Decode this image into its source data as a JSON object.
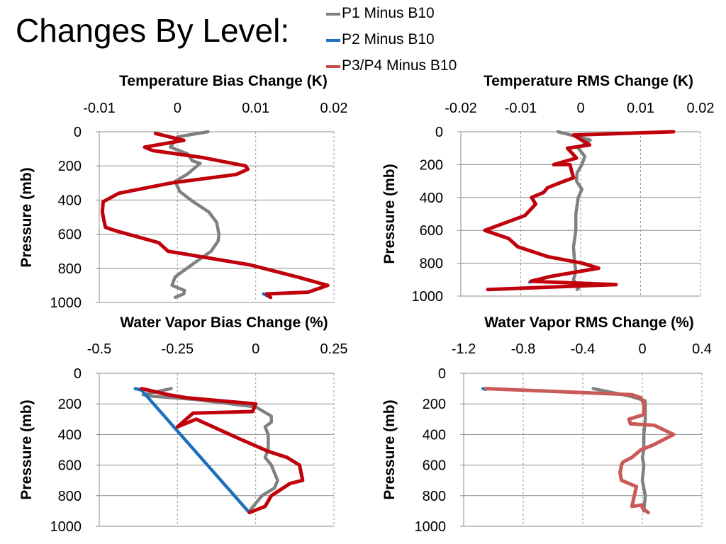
{
  "title": "Changes By Level:",
  "legend": [
    {
      "label": "P1 Minus B10",
      "color": "#808080"
    },
    {
      "label": "P2 Minus B10",
      "color": "#1f6fbf"
    },
    {
      "label": "P3/P4 Minus B10",
      "color": "#c0504d"
    }
  ],
  "chart_data": [
    {
      "type": "line",
      "title": "Temperature Bias Change (K)",
      "xlabel": "",
      "ylabel": "Pressure (mb)",
      "xlim": [
        -0.01,
        0.02
      ],
      "ylim": [
        0,
        1000
      ],
      "y_inverted": true,
      "x_axis_position": "top",
      "x_ticks": [
        "-0.01",
        "0",
        "0.01",
        "0.02"
      ],
      "y_ticks": [
        "0",
        "200",
        "400",
        "600",
        "800",
        "1000"
      ],
      "grid": true,
      "series": [
        {
          "name": "P1 Minus B10",
          "color": "#808080",
          "width": 4.5,
          "x": [
            0.0039,
            0.0,
            -0.0009,
            0.0013,
            0.0019,
            0.0029,
            0.0012,
            -0.0003,
            0.0003,
            0.002,
            0.004,
            0.005,
            0.0053,
            0.0052,
            0.0043,
            0.0021,
            -0.0003,
            -0.0007,
            0.0009,
            0.0008,
            -0.0003
          ],
          "y": [
            0,
            30,
            90,
            130,
            170,
            185,
            250,
            290,
            350,
            410,
            470,
            530,
            600,
            640,
            700,
            770,
            850,
            900,
            930,
            950,
            970
          ]
        },
        {
          "name": "P2 Minus B10",
          "color": "#1f6fbf",
          "width": 4.5,
          "x": [
            0.011,
            0.0119
          ],
          "y": [
            950,
            970
          ]
        },
        {
          "name": "P3/P4 Minus B10",
          "color": "#c0000b",
          "width": 5,
          "x": [
            -0.0028,
            0.0008,
            -0.0042,
            -0.0032,
            0.0031,
            0.0087,
            0.009,
            0.0075,
            -0.0008,
            -0.0075,
            -0.0095,
            -0.0096,
            -0.0094,
            -0.0092,
            -0.0079,
            -0.0024,
            -0.0012,
            0.0093,
            0.0153,
            0.0192,
            0.0167,
            0.0114,
            0.0119
          ],
          "y": [
            10,
            50,
            90,
            110,
            150,
            200,
            220,
            250,
            300,
            360,
            410,
            470,
            520,
            560,
            580,
            650,
            700,
            780,
            850,
            900,
            940,
            950,
            970
          ]
        }
      ]
    },
    {
      "type": "line",
      "title": "Temperature RMS Change (K)",
      "xlabel": "",
      "ylabel": "Pressure (mb)",
      "xlim": [
        -0.02,
        0.02
      ],
      "ylim": [
        0,
        1000
      ],
      "y_inverted": true,
      "x_axis_position": "top",
      "x_ticks": [
        "-0.02",
        "-0.01",
        "0",
        "0.01",
        "0.02"
      ],
      "y_ticks": [
        "0",
        "200",
        "400",
        "600",
        "800",
        "1000"
      ],
      "grid": true,
      "series": [
        {
          "name": "P1 Minus B10",
          "color": "#808080",
          "width": 4.5,
          "x": [
            -0.0038,
            0.0016,
            -0.0004,
            0.0007,
            0.0002,
            -0.0006,
            -0.0007,
            0.0002,
            -0.0004,
            -0.0008,
            -0.0008,
            -0.0012,
            -0.001,
            -0.0008,
            -0.0012,
            -0.0003,
            -0.0006
          ],
          "y": [
            0,
            50,
            100,
            150,
            200,
            250,
            300,
            350,
            400,
            500,
            600,
            700,
            800,
            850,
            900,
            950,
            960
          ]
        },
        {
          "name": "P2 Minus B10",
          "color": "#1f6fbf",
          "width": 4.5,
          "x": [
            -0.0085,
            -0.0075
          ],
          "y": [
            915,
            900
          ]
        },
        {
          "name": "P3/P4 Minus B10",
          "color": "#c0000b",
          "width": 5,
          "x": [
            0.0155,
            -0.0012,
            0.0015,
            -0.0022,
            -0.0007,
            -0.0045,
            -0.0018,
            -0.0012,
            -0.0027,
            -0.0055,
            -0.0062,
            -0.0082,
            -0.0075,
            -0.0093,
            -0.016,
            -0.012,
            -0.0105,
            -0.0055,
            0.0003,
            0.003,
            -0.005,
            -0.0083,
            0.0059,
            -0.0155
          ],
          "y": [
            0,
            20,
            80,
            100,
            160,
            200,
            200,
            280,
            300,
            340,
            370,
            400,
            440,
            510,
            600,
            650,
            700,
            760,
            800,
            830,
            880,
            910,
            930,
            960
          ]
        }
      ]
    },
    {
      "type": "line",
      "title": "Water Vapor Bias Change (%)",
      "xlabel": "",
      "ylabel": "Pressure (mb)",
      "xlim": [
        -0.5,
        0.25
      ],
      "ylim": [
        0,
        1000
      ],
      "y_inverted": true,
      "x_axis_position": "top",
      "x_ticks": [
        "-0.5",
        "-0.25",
        "0",
        "0.25"
      ],
      "y_ticks": [
        "0",
        "200",
        "400",
        "600",
        "800",
        "1000"
      ],
      "grid": true,
      "series": [
        {
          "name": "P1 Minus B10",
          "color": "#808080",
          "width": 4.5,
          "x": [
            -0.27,
            -0.36,
            -0.33,
            -0.2,
            0.0,
            0.05,
            0.05,
            0.03,
            0.04,
            0.04,
            0.03,
            0.05,
            0.06,
            0.07,
            0.06,
            0.02,
            -0.02
          ],
          "y": [
            100,
            140,
            150,
            170,
            220,
            280,
            320,
            350,
            400,
            500,
            550,
            600,
            650,
            700,
            750,
            800,
            900
          ]
        },
        {
          "name": "P2 Minus B10",
          "color": "#1f6fbf",
          "width": 4.5,
          "x": [
            -0.385,
            -0.365,
            -0.025,
            -0.02
          ],
          "y": [
            100,
            110,
            900,
            910
          ]
        },
        {
          "name": "P3/P4 Minus B10",
          "color": "#c0000b",
          "width": 5,
          "x": [
            -0.365,
            -0.28,
            -0.22,
            0.0,
            -0.01,
            -0.2,
            -0.25,
            -0.19,
            -0.05,
            0.04,
            0.1,
            0.14,
            0.15,
            0.11,
            0.05,
            0.03,
            -0.02
          ],
          "y": [
            100,
            140,
            160,
            200,
            250,
            260,
            350,
            300,
            430,
            510,
            550,
            600,
            700,
            720,
            800,
            870,
            910
          ]
        }
      ]
    },
    {
      "type": "line",
      "title": "Water Vapor RMS Change (%)",
      "xlabel": "",
      "ylabel": "Pressure (mb)",
      "xlim": [
        -1.2,
        0.4
      ],
      "ylim": [
        0,
        1000
      ],
      "y_inverted": true,
      "x_axis_position": "top",
      "x_ticks": [
        "-1.2",
        "-0.8",
        "-0.4",
        "0",
        "0.4"
      ],
      "y_ticks": [
        "0",
        "200",
        "400",
        "600",
        "800",
        "1000"
      ],
      "grid": true,
      "series": [
        {
          "name": "P1 Minus B10",
          "color": "#808080",
          "width": 4.5,
          "x": [
            -0.33,
            -0.08,
            0.02,
            0.02,
            0.02,
            0.01,
            0.01,
            0.0,
            0.01,
            0.0,
            0.02,
            0.01
          ],
          "y": [
            100,
            150,
            180,
            250,
            300,
            400,
            500,
            550,
            600,
            700,
            800,
            900
          ]
        },
        {
          "name": "P2 Minus B10",
          "color": "#1f6fbf",
          "width": 4.5,
          "x": [
            -1.07,
            -1.05
          ],
          "y": [
            100,
            105
          ]
        },
        {
          "name": "P3/P4 Minus B10",
          "color": "#c95a57",
          "width": 5,
          "x": [
            -1.05,
            -0.07,
            -0.01,
            0.01,
            0.01,
            -0.09,
            -0.08,
            0.08,
            0.21,
            0.07,
            -0.01,
            -0.07,
            -0.13,
            -0.14,
            -0.15,
            -0.14,
            -0.04,
            -0.07,
            0.0,
            0.0,
            0.04
          ],
          "y": [
            100,
            140,
            160,
            200,
            270,
            300,
            330,
            340,
            400,
            470,
            500,
            550,
            580,
            600,
            650,
            700,
            740,
            870,
            860,
            880,
            910
          ]
        }
      ]
    }
  ]
}
